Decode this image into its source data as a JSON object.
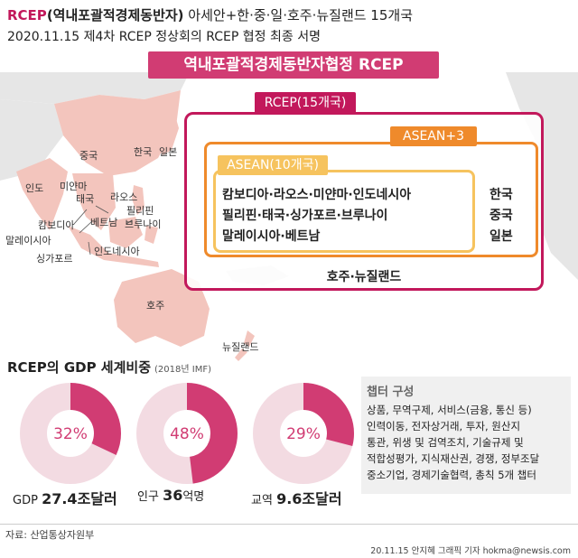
{
  "header": {
    "title_prefix": "RCEP",
    "title_main": "(역내포괄적경제동반자)",
    "title_suffix": " 아세안+한·중·일·호주·뉴질랜드 15개국",
    "subtitle": "2020.11.15 제4차 RCEP 정상회의 RCEP 협정 최종 서명"
  },
  "banner": "역내포괄적경제동반자협정 RCEP",
  "map_labels": {
    "china": "중국",
    "korea": "한국",
    "japan": "일본",
    "india": "인도",
    "myanmar": "미얀마",
    "laos": "라오스",
    "thailand": "태국",
    "philippines": "필리핀",
    "cambodia": "캄보디아",
    "vietnam": "베트남",
    "brunei": "브루나이",
    "malaysia": "말레이시아",
    "indonesia": "인도네시아",
    "singapore": "싱가포르",
    "australia": "호주",
    "newzealand": "뉴질랜드"
  },
  "diagram": {
    "rcep_tag": "RCEP(15개국)",
    "asean3_tag": "ASEAN+3",
    "asean_tag": "ASEAN(10개국)",
    "asean_lines": [
      "캄보디아·라오스·미얀마·인도네시아",
      "필리핀·태국·싱가포르·브루나이",
      "말레이시아·베트남"
    ],
    "plus3": [
      "한국",
      "중국",
      "일본"
    ],
    "oceania": "호주·뉴질랜드"
  },
  "gdp_section": {
    "title": "RCEP의 GDP 세계비중",
    "source_note": "(2018년 IMF)"
  },
  "chart_data": {
    "type": "pie",
    "title": "RCEP의 GDP 세계비중",
    "items": [
      {
        "label": "GDP",
        "percent": 32,
        "percent_label": "32%",
        "value": "27.4",
        "unit": "조달러"
      },
      {
        "label": "인구",
        "percent": 48,
        "percent_label": "48%",
        "value": "36",
        "unit": "억명"
      },
      {
        "label": "교역",
        "percent": 29,
        "percent_label": "29%",
        "value": "9.6",
        "unit": "조달러"
      }
    ],
    "colors": {
      "filled": "#d13c73",
      "rest": "#f3dbe2"
    }
  },
  "chapters": {
    "title": "챕터 구성",
    "lines": [
      "상품, 무역구제, 서비스(금융, 통신 등)",
      "인력이동, 전자상거래, 투자, 원산지",
      "통관, 위생 및 검역조치, 기술규제 및",
      "적합성평가, 지식재산권, 경쟁, 정부조달",
      "중소기업, 경제기술협력, 총칙 5개 챕터"
    ]
  },
  "footer": {
    "source": "자료: 산업통상자원부",
    "credit": "20.11.15 안지혜 그래픽 기자 hokma@newsis.com"
  },
  "colors": {
    "primary": "#c2185b",
    "banner": "#d13c73",
    "asean3": "#ef8a2b",
    "asean": "#f6c35e",
    "map_member": "#f3c5bd",
    "map_other": "#e6e6e6"
  }
}
